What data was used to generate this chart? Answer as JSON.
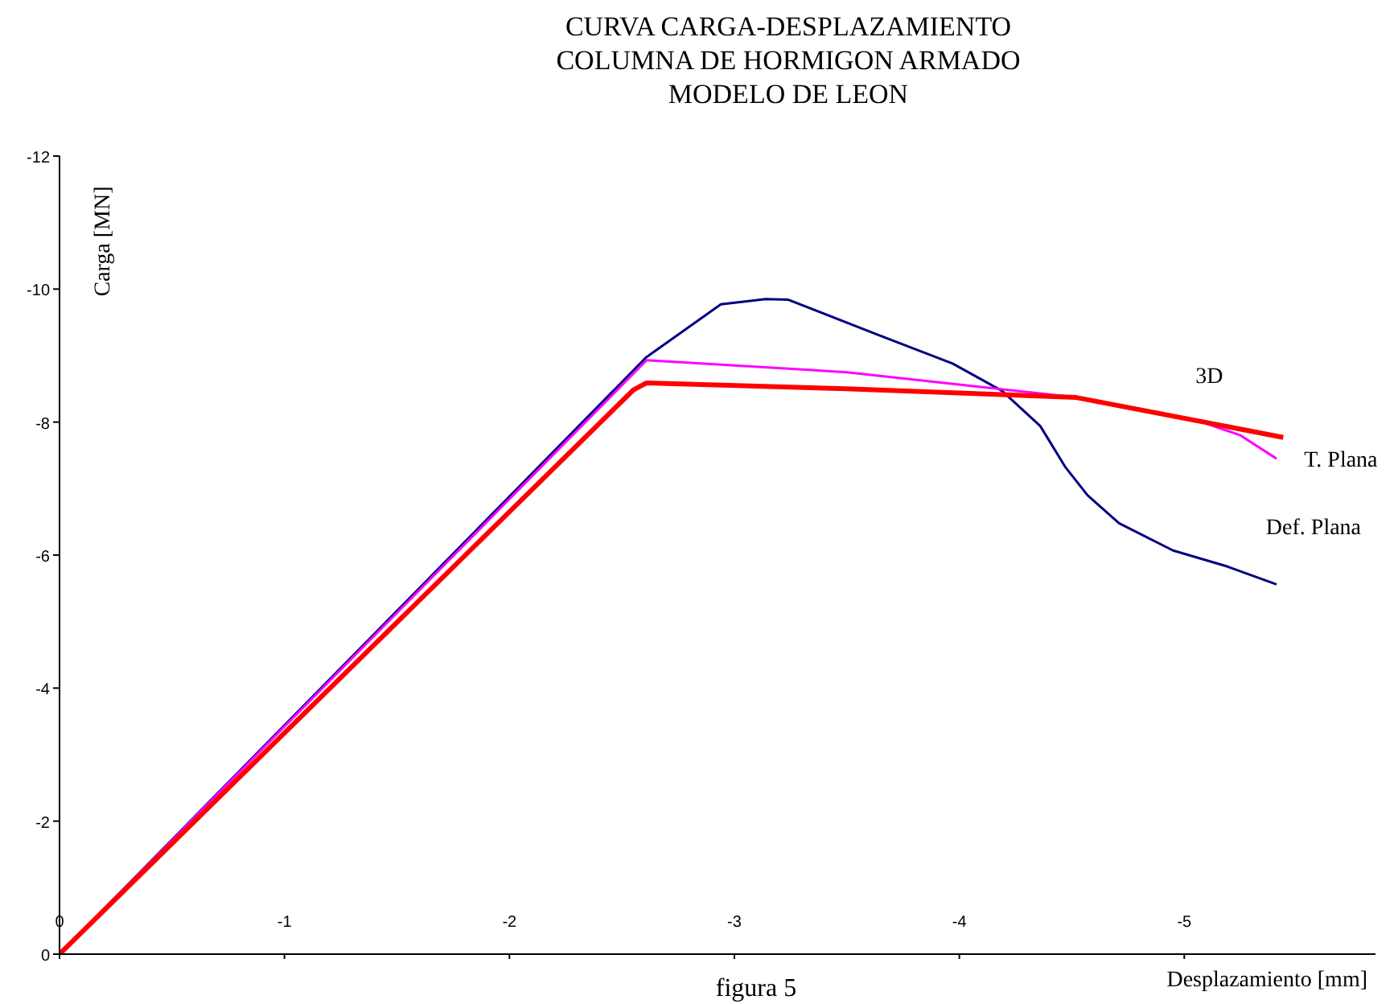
{
  "chart_data": {
    "type": "line",
    "title": "CURVA CARGA-DESPLAZAMIENTO\nCOLUMNA DE HORMIGON ARMADO\nMODELO DE LEON",
    "xlabel": "Desplazamiento [mm]",
    "ylabel": "Carga [MN]",
    "annotations": [
      "figura 5"
    ],
    "xlim": [
      0,
      -5.85
    ],
    "xticks": [
      0,
      -1,
      -2,
      -3,
      -4,
      -5
    ],
    "ylim": [
      0,
      -12
    ],
    "yticks": [
      0,
      -2,
      -4,
      -6,
      -8,
      -10,
      -12
    ],
    "grid": false,
    "legend": false,
    "marker": "none",
    "series": [
      {
        "name": "Def.  Plana",
        "color": "#000080",
        "x": [
          0,
          -2.61,
          -2.94,
          -3.14,
          -3.24,
          -3.64,
          -3.97,
          -4.19,
          -4.36,
          -4.47,
          -4.57,
          -4.71,
          -4.95,
          -5.19,
          -5.41
        ],
        "values": [
          0,
          -8.98,
          -9.77,
          -9.85,
          -9.84,
          -9.31,
          -8.88,
          -8.47,
          -7.94,
          -7.33,
          -6.9,
          -6.48,
          -6.07,
          -5.83,
          -5.56
        ]
      },
      {
        "name": "T. Plana",
        "color": "#ff00ff",
        "x": [
          0,
          -2.61,
          -3.5,
          -4.52,
          -5.07,
          -5.25,
          -5.41
        ],
        "values": [
          0,
          -8.93,
          -8.75,
          -8.37,
          -8.01,
          -7.8,
          -7.45
        ]
      },
      {
        "name": "3D",
        "color": "#ff0000",
        "x": [
          0,
          -2.55,
          -2.61,
          -3.5,
          -4.52,
          -5.44
        ],
        "values": [
          0,
          -8.48,
          -8.59,
          -8.5,
          -8.37,
          -7.77
        ]
      }
    ]
  }
}
